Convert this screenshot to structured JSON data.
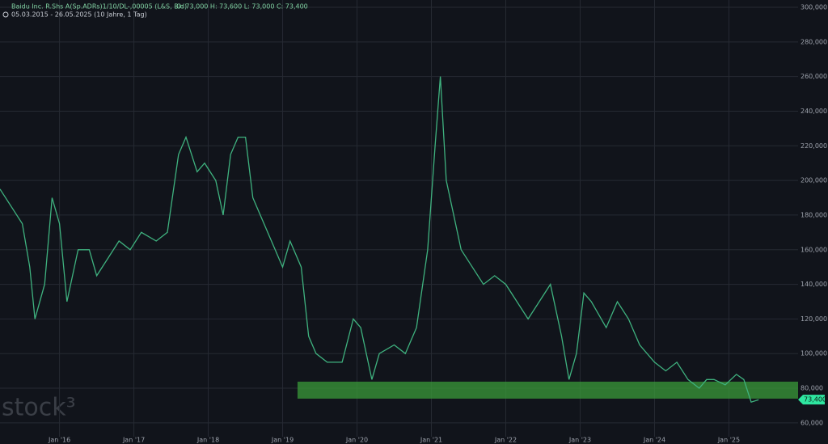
{
  "chart_data": {
    "type": "line",
    "title": "Baidu Inc. R.Shs A(Sp.ADRs)1/10/DL-,00005 (L&S, Bid)",
    "quote": "O: 73,000  H: 73,600  L: 73,000  C: 73,400",
    "subtitle": "05.03.2015 - 26.05.2025  (10 Jahre, 1 Tag)",
    "watermark": "stock³",
    "x": [
      2015.2,
      2015.35,
      2015.5,
      2015.6,
      2015.67,
      2015.8,
      2015.9,
      2016.0,
      2016.1,
      2016.25,
      2016.4,
      2016.5,
      2016.65,
      2016.8,
      2016.95,
      2017.1,
      2017.3,
      2017.45,
      2017.6,
      2017.7,
      2017.85,
      2017.95,
      2018.1,
      2018.2,
      2018.3,
      2018.4,
      2018.5,
      2018.6,
      2018.75,
      2018.9,
      2019.0,
      2019.1,
      2019.25,
      2019.35,
      2019.45,
      2019.6,
      2019.8,
      2019.95,
      2020.05,
      2020.2,
      2020.3,
      2020.5,
      2020.65,
      2020.8,
      2020.95,
      2021.05,
      2021.12,
      2021.2,
      2021.3,
      2021.4,
      2021.55,
      2021.7,
      2021.85,
      2022.0,
      2022.15,
      2022.3,
      2022.45,
      2022.6,
      2022.75,
      2022.85,
      2022.95,
      2023.05,
      2023.15,
      2023.35,
      2023.5,
      2023.65,
      2023.8,
      2024.0,
      2024.15,
      2024.3,
      2024.45,
      2024.6,
      2024.7,
      2024.8,
      2024.95,
      2025.1,
      2025.2,
      2025.3,
      2025.4
    ],
    "series": [
      {
        "color": "#3fb27f",
        "values": [
          195000,
          185000,
          175000,
          150000,
          120000,
          140000,
          190000,
          175000,
          130000,
          160000,
          160000,
          145000,
          155000,
          165000,
          160000,
          170000,
          165000,
          170000,
          215000,
          225000,
          205000,
          210000,
          200000,
          180000,
          215000,
          225000,
          225000,
          190000,
          175000,
          160000,
          150000,
          165000,
          150000,
          110000,
          100000,
          95000,
          95000,
          120000,
          115000,
          85000,
          100000,
          105000,
          100000,
          115000,
          160000,
          220000,
          260000,
          200000,
          180000,
          160000,
          150000,
          140000,
          145000,
          140000,
          130000,
          120000,
          130000,
          140000,
          110000,
          85000,
          100000,
          135000,
          130000,
          115000,
          130000,
          120000,
          105000,
          95000,
          90000,
          95000,
          85000,
          80000,
          85000,
          85000,
          82000,
          88000,
          85000,
          72000,
          73400
        ]
      }
    ],
    "zones": [
      {
        "x": [
          2019.2,
          2025.93
        ],
        "y": [
          74000,
          83800
        ],
        "color": "#3a9a3a"
      }
    ],
    "last_price": {
      "value": 73400,
      "label": "73,400",
      "color": "#2ee6a0"
    },
    "xlim": [
      2015.2,
      2025.93
    ],
    "xticks": [
      {
        "value": 2016,
        "label": "Jan '16"
      },
      {
        "value": 2017,
        "label": "Jan '17"
      },
      {
        "value": 2018,
        "label": "Jan '18"
      },
      {
        "value": 2019,
        "label": "Jan '19"
      },
      {
        "value": 2020,
        "label": "Jan '20"
      },
      {
        "value": 2021,
        "label": "Jan '21"
      },
      {
        "value": 2022,
        "label": "Jan '22"
      },
      {
        "value": 2023,
        "label": "Jan '23"
      },
      {
        "value": 2024,
        "label": "Jan '24"
      },
      {
        "value": 2025,
        "label": "Jan '25"
      }
    ],
    "ylim": [
      52000,
      304200
    ],
    "yticks": [
      {
        "value": 60000,
        "label": "60,000"
      },
      {
        "value": 80000,
        "label": "80,000"
      },
      {
        "value": 100000,
        "label": "100,000"
      },
      {
        "value": 120000,
        "label": "120,000"
      },
      {
        "value": 140000,
        "label": "140,000"
      },
      {
        "value": 160000,
        "label": "160,000"
      },
      {
        "value": 180000,
        "label": "180,000"
      },
      {
        "value": 200000,
        "label": "200,000"
      },
      {
        "value": 220000,
        "label": "220,000"
      },
      {
        "value": 240000,
        "label": "240,000"
      },
      {
        "value": 260000,
        "label": "260,000"
      },
      {
        "value": 280000,
        "label": "280,000"
      },
      {
        "value": 300000,
        "label": "300,000"
      }
    ],
    "grid": true
  }
}
